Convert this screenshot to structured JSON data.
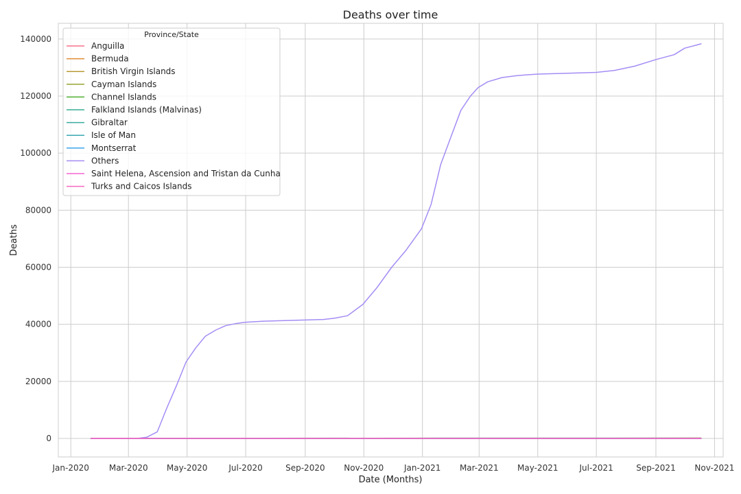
{
  "chart_data": {
    "type": "line",
    "title": "Deaths over time",
    "xlabel": "Date (Months)",
    "ylabel": "Deaths",
    "legend_title": "Province/State",
    "legend_position": "top-left",
    "grid": true,
    "xlim": [
      "2019-12-19",
      "2021-11-10"
    ],
    "ylim": [
      -6500,
      145500
    ],
    "x_ticks": [
      {
        "date": "2020-01-01",
        "label": "Jan-2020"
      },
      {
        "date": "2020-03-01",
        "label": "Mar-2020"
      },
      {
        "date": "2020-05-01",
        "label": "May-2020"
      },
      {
        "date": "2020-07-01",
        "label": "Jul-2020"
      },
      {
        "date": "2020-09-01",
        "label": "Sep-2020"
      },
      {
        "date": "2020-11-01",
        "label": "Nov-2020"
      },
      {
        "date": "2021-01-01",
        "label": "Jan-2021"
      },
      {
        "date": "2021-03-01",
        "label": "Mar-2021"
      },
      {
        "date": "2021-05-01",
        "label": "May-2021"
      },
      {
        "date": "2021-07-01",
        "label": "Jul-2021"
      },
      {
        "date": "2021-09-01",
        "label": "Sep-2021"
      },
      {
        "date": "2021-11-01",
        "label": "Nov-2021"
      }
    ],
    "y_ticks": [
      0,
      20000,
      40000,
      60000,
      80000,
      100000,
      120000,
      140000
    ],
    "series": [
      {
        "name": "Anguilla",
        "color": "#f77189",
        "x": [
          "2020-01-22",
          "2021-10-18"
        ],
        "values": [
          0,
          0
        ]
      },
      {
        "name": "Bermuda",
        "color": "#e08a33",
        "x": [
          "2020-01-22",
          "2020-05-01",
          "2020-12-01",
          "2021-06-01",
          "2021-09-01",
          "2021-10-18"
        ],
        "values": [
          0,
          9,
          12,
          33,
          80,
          105
        ]
      },
      {
        "name": "British Virgin Islands",
        "color": "#b79a35",
        "x": [
          "2020-01-22",
          "2021-07-01",
          "2021-10-18"
        ],
        "values": [
          0,
          6,
          37
        ]
      },
      {
        "name": "Cayman Islands",
        "color": "#97a431",
        "x": [
          "2020-01-22",
          "2021-09-01",
          "2021-10-18"
        ],
        "values": [
          0,
          2,
          6
        ]
      },
      {
        "name": "Channel Islands",
        "color": "#50b131",
        "x": [
          "2020-01-22",
          "2020-06-01",
          "2021-02-01",
          "2021-10-18"
        ],
        "values": [
          0,
          47,
          97,
          101
        ]
      },
      {
        "name": "Falkland Islands (Malvinas)",
        "color": "#34ae91",
        "x": [
          "2020-01-22",
          "2021-10-18"
        ],
        "values": [
          0,
          0
        ]
      },
      {
        "name": "Gibraltar",
        "color": "#37aa9c",
        "x": [
          "2020-01-22",
          "2020-12-01",
          "2021-02-01",
          "2021-10-18"
        ],
        "values": [
          0,
          6,
          94,
          97
        ]
      },
      {
        "name": "Isle of Man",
        "color": "#39a7b0",
        "x": [
          "2020-01-22",
          "2020-06-01",
          "2021-03-01",
          "2021-10-18"
        ],
        "values": [
          0,
          24,
          29,
          48
        ]
      },
      {
        "name": "Montserrat",
        "color": "#3ba3ec",
        "x": [
          "2020-01-22",
          "2020-05-01",
          "2021-10-18"
        ],
        "values": [
          0,
          1,
          1
        ]
      },
      {
        "name": "Others",
        "color": "#a48cf4",
        "x": [
          "2020-01-22",
          "2020-03-10",
          "2020-03-20",
          "2020-03-31",
          "2020-04-10",
          "2020-04-20",
          "2020-04-30",
          "2020-05-10",
          "2020-05-20",
          "2020-05-31",
          "2020-06-10",
          "2020-06-20",
          "2020-06-30",
          "2020-07-20",
          "2020-08-10",
          "2020-09-01",
          "2020-09-20",
          "2020-10-01",
          "2020-10-15",
          "2020-10-31",
          "2020-11-15",
          "2020-11-30",
          "2020-12-15",
          "2020-12-31",
          "2021-01-10",
          "2021-01-20",
          "2021-01-31",
          "2021-02-10",
          "2021-02-20",
          "2021-02-28",
          "2021-03-10",
          "2021-03-25",
          "2021-04-10",
          "2021-05-01",
          "2021-06-01",
          "2021-07-01",
          "2021-07-20",
          "2021-08-10",
          "2021-09-01",
          "2021-09-20",
          "2021-10-01",
          "2021-10-18"
        ],
        "values": [
          0,
          0,
          400,
          2300,
          10700,
          18500,
          26800,
          31700,
          35800,
          38000,
          39500,
          40200,
          40700,
          41100,
          41300,
          41500,
          41700,
          42100,
          43000,
          47000,
          53000,
          60000,
          66000,
          73500,
          82000,
          96000,
          106000,
          115000,
          120000,
          123000,
          125000,
          126500,
          127200,
          127700,
          128000,
          128300,
          129000,
          130500,
          132800,
          134500,
          136800,
          138300
        ]
      },
      {
        "name": "Saint Helena, Ascension and Tristan da Cunha",
        "color": "#f564d4",
        "x": [
          "2020-01-22",
          "2021-10-18"
        ],
        "values": [
          0,
          0
        ]
      },
      {
        "name": "Turks and Caicos Islands",
        "color": "#f668c2",
        "x": [
          "2020-01-22",
          "2020-08-01",
          "2021-01-01",
          "2021-06-01",
          "2021-10-18"
        ],
        "values": [
          0,
          2,
          6,
          20,
          23
        ]
      }
    ]
  }
}
